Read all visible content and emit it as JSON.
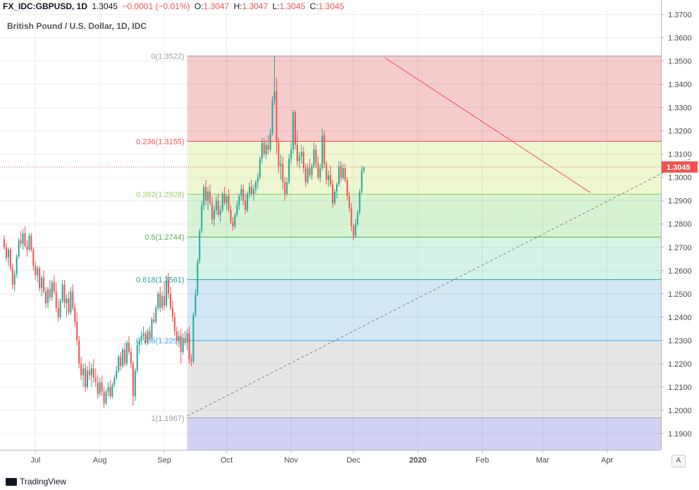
{
  "header": {
    "symbol": "FX_IDC:GBPUSD, 1D",
    "last": "1.3045",
    "change": "−0.0001 (−0.01%)",
    "o_label": "O:",
    "o": "1.3047",
    "h_label": "H:",
    "h": "1.3047",
    "l_label": "L:",
    "l": "1.3045",
    "c_label": "C:",
    "c": "1.3045"
  },
  "footer": {
    "brand": "TradingView",
    "auto_button": "A"
  },
  "colors": {
    "up": "#26a69a",
    "down": "#ef5350",
    "trend": "#ef5350",
    "support": "#888888"
  },
  "chart_data": {
    "type": "candlestick",
    "title": "British Pound / U.S. Dollar, 1D, IDC",
    "ylim": [
      1.183,
      1.372
    ],
    "y_ticks": [
      "1.3700",
      "1.3600",
      "1.3500",
      "1.3400",
      "1.3300",
      "1.3200",
      "1.3100",
      "1.3000",
      "1.2900",
      "1.2800",
      "1.2700",
      "1.2600",
      "1.2500",
      "1.2400",
      "1.2300",
      "1.2200",
      "1.2100",
      "1.2000",
      "1.1900"
    ],
    "x_ticks": [
      {
        "label": "Jul",
        "day": 15
      },
      {
        "label": "Aug",
        "day": 46
      },
      {
        "label": "Sep",
        "day": 77
      },
      {
        "label": "Oct",
        "day": 107
      },
      {
        "label": "Nov",
        "day": 138
      },
      {
        "label": "Dec",
        "day": 168
      },
      {
        "label": "2020",
        "day": 199
      },
      {
        "label": "Feb",
        "day": 230
      },
      {
        "label": "Mar",
        "day": 259
      },
      {
        "label": "Apr",
        "day": 290
      }
    ],
    "current_price": {
      "value": 1.3045,
      "label": "1.3045"
    },
    "fib_retracement": {
      "levels": [
        {
          "ratio": 0,
          "label": "0(1.3522)",
          "price": 1.3522,
          "color": "#9e9e9e"
        },
        {
          "ratio": 0.236,
          "label": "0.236(1.3155)",
          "price": 1.3155,
          "color": "#ef5350"
        },
        {
          "ratio": 0.382,
          "label": "0.382(1.2928)",
          "price": 1.2928,
          "color": "#9ccc65"
        },
        {
          "ratio": 0.5,
          "label": "0.5(1.2744)",
          "price": 1.2744,
          "color": "#4caf50"
        },
        {
          "ratio": 0.618,
          "label": "0.618(1.2561)",
          "price": 1.2561,
          "color": "#26a69a"
        },
        {
          "ratio": 0.786,
          "label": "0.786(1.2299)",
          "price": 1.2299,
          "color": "#42a5f5"
        },
        {
          "ratio": 1,
          "label": "1(1.1967)",
          "price": 1.1967,
          "color": "#9e9e9e"
        }
      ],
      "zone_colors": [
        "#f6cccc",
        "#eef6d2",
        "#d8f3d3",
        "#d5f3e7",
        "#d3e8f4",
        "#e6e6e6",
        "#d2d2f4"
      ],
      "extension_price": 1.183,
      "start_day": 88
    },
    "trendlines": [
      {
        "name": "resistance",
        "style": "solid",
        "from": {
          "day": 183,
          "price": 1.3515
        },
        "to": {
          "day": 282,
          "price": 1.2935
        }
      },
      {
        "name": "support",
        "style": "dashed",
        "from": {
          "day": 88,
          "price": 1.1975
        },
        "to": {
          "day": 330,
          "price": 1.308
        }
      }
    ],
    "candles": [
      [
        0,
        1.2735,
        1.275,
        1.269,
        1.27
      ],
      [
        1,
        1.27,
        1.272,
        1.264,
        1.2655
      ],
      [
        2,
        1.2655,
        1.27,
        1.262,
        1.269
      ],
      [
        3,
        1.269,
        1.27,
        1.26,
        1.261
      ],
      [
        4,
        1.261,
        1.263,
        1.252,
        1.254
      ],
      [
        5,
        1.254,
        1.26,
        1.251,
        1.2585
      ],
      [
        6,
        1.2585,
        1.267,
        1.257,
        1.266
      ],
      [
        7,
        1.266,
        1.274,
        1.265,
        1.273
      ],
      [
        8,
        1.273,
        1.277,
        1.27,
        1.2715
      ],
      [
        9,
        1.2715,
        1.278,
        1.269,
        1.276
      ],
      [
        10,
        1.276,
        1.279,
        1.27,
        1.2705
      ],
      [
        11,
        1.2705,
        1.273,
        1.266,
        1.269
      ],
      [
        12,
        1.269,
        1.276,
        1.268,
        1.275
      ],
      [
        13,
        1.275,
        1.276,
        1.268,
        1.269
      ],
      [
        14,
        1.269,
        1.27,
        1.26,
        1.262
      ],
      [
        15,
        1.262,
        1.264,
        1.256,
        1.258
      ],
      [
        16,
        1.258,
        1.262,
        1.255,
        1.261
      ],
      [
        17,
        1.261,
        1.262,
        1.251,
        1.2525
      ],
      [
        18,
        1.2525,
        1.258,
        1.249,
        1.257
      ],
      [
        19,
        1.257,
        1.26,
        1.25,
        1.251
      ],
      [
        20,
        1.251,
        1.253,
        1.244,
        1.246
      ],
      [
        21,
        1.246,
        1.253,
        1.244,
        1.252
      ],
      [
        22,
        1.252,
        1.256,
        1.247,
        1.2485
      ],
      [
        23,
        1.2485,
        1.256,
        1.247,
        1.255
      ],
      [
        24,
        1.255,
        1.258,
        1.25,
        1.251
      ],
      [
        25,
        1.251,
        1.255,
        1.242,
        1.244
      ],
      [
        26,
        1.244,
        1.248,
        1.238,
        1.24
      ],
      [
        27,
        1.24,
        1.248,
        1.239,
        1.247
      ],
      [
        28,
        1.247,
        1.256,
        1.246,
        1.254
      ],
      [
        29,
        1.254,
        1.256,
        1.244,
        1.246
      ],
      [
        30,
        1.246,
        1.25,
        1.24,
        1.248
      ],
      [
        31,
        1.248,
        1.251,
        1.241,
        1.242
      ],
      [
        32,
        1.242,
        1.253,
        1.241,
        1.251
      ],
      [
        33,
        1.251,
        1.254,
        1.243,
        1.244
      ],
      [
        34,
        1.244,
        1.246,
        1.236,
        1.238
      ],
      [
        35,
        1.238,
        1.242,
        1.228,
        1.23
      ],
      [
        36,
        1.23,
        1.232,
        1.218,
        1.22
      ],
      [
        37,
        1.22,
        1.223,
        1.213,
        1.215
      ],
      [
        38,
        1.215,
        1.22,
        1.21,
        1.218
      ],
      [
        39,
        1.218,
        1.22,
        1.208,
        1.21
      ],
      [
        40,
        1.21,
        1.219,
        1.209,
        1.217
      ],
      [
        41,
        1.217,
        1.221,
        1.213,
        1.215
      ],
      [
        42,
        1.215,
        1.22,
        1.21,
        1.218
      ],
      [
        43,
        1.218,
        1.222,
        1.212,
        1.214
      ],
      [
        44,
        1.214,
        1.218,
        1.21,
        1.212
      ],
      [
        45,
        1.212,
        1.215,
        1.205,
        1.207
      ],
      [
        46,
        1.207,
        1.214,
        1.206,
        1.212
      ],
      [
        47,
        1.212,
        1.215,
        1.206,
        1.208
      ],
      [
        48,
        1.208,
        1.21,
        1.201,
        1.203
      ],
      [
        49,
        1.203,
        1.209,
        1.202,
        1.208
      ],
      [
        50,
        1.208,
        1.212,
        1.206,
        1.21
      ],
      [
        51,
        1.21,
        1.213,
        1.205,
        1.206
      ],
      [
        52,
        1.206,
        1.212,
        1.205,
        1.211
      ],
      [
        53,
        1.211,
        1.215,
        1.21,
        1.214
      ],
      [
        54,
        1.214,
        1.219,
        1.213,
        1.217
      ],
      [
        55,
        1.217,
        1.224,
        1.216,
        1.223
      ],
      [
        56,
        1.223,
        1.225,
        1.217,
        1.219
      ],
      [
        57,
        1.219,
        1.227,
        1.218,
        1.226
      ],
      [
        58,
        1.226,
        1.229,
        1.219,
        1.22
      ],
      [
        59,
        1.22,
        1.23,
        1.219,
        1.229
      ],
      [
        60,
        1.229,
        1.232,
        1.224,
        1.225
      ],
      [
        61,
        1.225,
        1.227,
        1.218,
        1.22
      ],
      [
        62,
        1.22,
        1.221,
        1.202,
        1.206
      ],
      [
        63,
        1.206,
        1.218,
        1.204,
        1.217
      ],
      [
        64,
        1.217,
        1.23,
        1.216,
        1.228
      ],
      [
        65,
        1.228,
        1.231,
        1.224,
        1.23
      ],
      [
        66,
        1.23,
        1.234,
        1.228,
        1.232
      ],
      [
        67,
        1.232,
        1.236,
        1.23,
        1.233
      ],
      [
        68,
        1.233,
        1.234,
        1.228,
        1.229
      ],
      [
        69,
        1.229,
        1.235,
        1.228,
        1.234
      ],
      [
        70,
        1.234,
        1.236,
        1.23,
        1.231
      ],
      [
        71,
        1.231,
        1.24,
        1.23,
        1.239
      ],
      [
        72,
        1.239,
        1.242,
        1.237,
        1.238
      ],
      [
        73,
        1.238,
        1.245,
        1.237,
        1.244
      ],
      [
        74,
        1.244,
        1.251,
        1.243,
        1.25
      ],
      [
        75,
        1.25,
        1.253,
        1.242,
        1.244
      ],
      [
        76,
        1.244,
        1.251,
        1.243,
        1.249
      ],
      [
        77,
        1.249,
        1.255,
        1.243,
        1.245
      ],
      [
        78,
        1.245,
        1.258,
        1.244,
        1.256
      ],
      [
        79,
        1.256,
        1.259,
        1.248,
        1.25
      ],
      [
        80,
        1.25,
        1.253,
        1.243,
        1.244
      ],
      [
        81,
        1.244,
        1.247,
        1.238,
        1.24
      ],
      [
        82,
        1.24,
        1.242,
        1.232,
        1.234
      ],
      [
        83,
        1.234,
        1.236,
        1.228,
        1.23
      ],
      [
        84,
        1.23,
        1.234,
        1.227,
        1.232
      ],
      [
        85,
        1.232,
        1.235,
        1.22,
        1.225
      ],
      [
        86,
        1.225,
        1.233,
        1.224,
        1.231
      ],
      [
        87,
        1.231,
        1.234,
        1.228,
        1.229
      ],
      [
        88,
        1.229,
        1.235,
        1.226,
        1.233
      ],
      [
        89,
        1.233,
        1.236,
        1.22,
        1.222
      ],
      [
        90,
        1.222,
        1.224,
        1.219,
        1.221
      ],
      [
        91,
        1.221,
        1.242,
        1.22,
        1.241
      ],
      [
        92,
        1.241,
        1.252,
        1.24,
        1.25
      ],
      [
        93,
        1.25,
        1.265,
        1.249,
        1.264
      ],
      [
        94,
        1.264,
        1.278,
        1.263,
        1.277
      ],
      [
        95,
        1.277,
        1.29,
        1.276,
        1.288
      ],
      [
        96,
        1.288,
        1.297,
        1.286,
        1.296
      ],
      [
        97,
        1.296,
        1.299,
        1.288,
        1.29
      ],
      [
        98,
        1.29,
        1.296,
        1.286,
        1.294
      ],
      [
        99,
        1.294,
        1.297,
        1.288,
        1.289
      ],
      [
        100,
        1.289,
        1.292,
        1.28,
        1.282
      ],
      [
        101,
        1.282,
        1.288,
        1.279,
        1.286
      ],
      [
        102,
        1.286,
        1.292,
        1.284,
        1.29
      ],
      [
        103,
        1.29,
        1.293,
        1.283,
        1.284
      ],
      [
        104,
        1.284,
        1.288,
        1.281,
        1.286
      ],
      [
        105,
        1.286,
        1.294,
        1.285,
        1.293
      ],
      [
        106,
        1.293,
        1.296,
        1.288,
        1.289
      ],
      [
        107,
        1.289,
        1.293,
        1.286,
        1.292
      ],
      [
        108,
        1.292,
        1.295,
        1.285,
        1.286
      ],
      [
        109,
        1.286,
        1.288,
        1.28,
        1.281
      ],
      [
        110,
        1.281,
        1.283,
        1.277,
        1.279
      ],
      [
        111,
        1.279,
        1.285,
        1.278,
        1.284
      ],
      [
        112,
        1.284,
        1.29,
        1.283,
        1.288
      ],
      [
        113,
        1.288,
        1.293,
        1.286,
        1.292
      ],
      [
        114,
        1.292,
        1.297,
        1.29,
        1.295
      ],
      [
        115,
        1.295,
        1.297,
        1.288,
        1.29
      ],
      [
        116,
        1.29,
        1.293,
        1.284,
        1.286
      ],
      [
        117,
        1.286,
        1.294,
        1.285,
        1.293
      ],
      [
        118,
        1.293,
        1.298,
        1.291,
        1.296
      ],
      [
        119,
        1.296,
        1.299,
        1.292,
        1.293
      ],
      [
        120,
        1.293,
        1.297,
        1.29,
        1.295
      ],
      [
        121,
        1.295,
        1.299,
        1.293,
        1.298
      ],
      [
        122,
        1.298,
        1.302,
        1.295,
        1.3
      ],
      [
        123,
        1.3,
        1.309,
        1.299,
        1.308
      ],
      [
        124,
        1.308,
        1.317,
        1.306,
        1.315
      ],
      [
        125,
        1.315,
        1.317,
        1.309,
        1.31
      ],
      [
        126,
        1.31,
        1.316,
        1.308,
        1.314
      ],
      [
        127,
        1.314,
        1.318,
        1.31,
        1.312
      ],
      [
        128,
        1.312,
        1.321,
        1.311,
        1.319
      ],
      [
        129,
        1.319,
        1.335,
        1.318,
        1.333
      ],
      [
        130,
        1.333,
        1.3522,
        1.331,
        1.337
      ],
      [
        131,
        1.337,
        1.343,
        1.31,
        1.315
      ],
      [
        132,
        1.315,
        1.317,
        1.302,
        1.305
      ],
      [
        133,
        1.305,
        1.31,
        1.299,
        1.306
      ],
      [
        134,
        1.306,
        1.309,
        1.295,
        1.298
      ],
      [
        135,
        1.298,
        1.3,
        1.29,
        1.293
      ],
      [
        136,
        1.293,
        1.3,
        1.292,
        1.298
      ],
      [
        137,
        1.298,
        1.31,
        1.297,
        1.308
      ],
      [
        138,
        1.308,
        1.315,
        1.306,
        1.312
      ],
      [
        139,
        1.312,
        1.329,
        1.31,
        1.328
      ],
      [
        140,
        1.328,
        1.329,
        1.312,
        1.314
      ],
      [
        141,
        1.314,
        1.32,
        1.305,
        1.307
      ],
      [
        142,
        1.307,
        1.311,
        1.304,
        1.309
      ],
      [
        143,
        1.309,
        1.314,
        1.306,
        1.311
      ],
      [
        144,
        1.311,
        1.313,
        1.302,
        1.304
      ],
      [
        145,
        1.304,
        1.306,
        1.296,
        1.298
      ],
      [
        146,
        1.298,
        1.306,
        1.297,
        1.304
      ],
      [
        147,
        1.304,
        1.308,
        1.3,
        1.301
      ],
      [
        148,
        1.301,
        1.306,
        1.299,
        1.305
      ],
      [
        149,
        1.305,
        1.315,
        1.304,
        1.312
      ],
      [
        150,
        1.312,
        1.314,
        1.304,
        1.306
      ],
      [
        151,
        1.306,
        1.309,
        1.299,
        1.3
      ],
      [
        152,
        1.3,
        1.306,
        1.298,
        1.304
      ],
      [
        153,
        1.304,
        1.321,
        1.303,
        1.318
      ],
      [
        154,
        1.318,
        1.32,
        1.304,
        1.306
      ],
      [
        155,
        1.306,
        1.307,
        1.297,
        1.299
      ],
      [
        156,
        1.299,
        1.303,
        1.296,
        1.301
      ],
      [
        157,
        1.301,
        1.305,
        1.296,
        1.297
      ],
      [
        158,
        1.297,
        1.299,
        1.287,
        1.289
      ],
      [
        159,
        1.289,
        1.295,
        1.288,
        1.294
      ],
      [
        160,
        1.294,
        1.298,
        1.291,
        1.297
      ],
      [
        161,
        1.297,
        1.307,
        1.296,
        1.305
      ],
      [
        162,
        1.305,
        1.307,
        1.298,
        1.3
      ],
      [
        163,
        1.3,
        1.306,
        1.299,
        1.304
      ],
      [
        164,
        1.304,
        1.306,
        1.298,
        1.299
      ],
      [
        165,
        1.299,
        1.3,
        1.29,
        1.292
      ],
      [
        166,
        1.292,
        1.294,
        1.285,
        1.287
      ],
      [
        167,
        1.287,
        1.289,
        1.277,
        1.279
      ],
      [
        168,
        1.279,
        1.28,
        1.273,
        1.275
      ],
      [
        169,
        1.275,
        1.282,
        1.274,
        1.28
      ],
      [
        170,
        1.28,
        1.286,
        1.279,
        1.285
      ],
      [
        171,
        1.285,
        1.295,
        1.284,
        1.294
      ],
      [
        172,
        1.294,
        1.305,
        1.293,
        1.303
      ],
      [
        173,
        1.303,
        1.3047,
        1.302,
        1.3045
      ]
    ]
  }
}
